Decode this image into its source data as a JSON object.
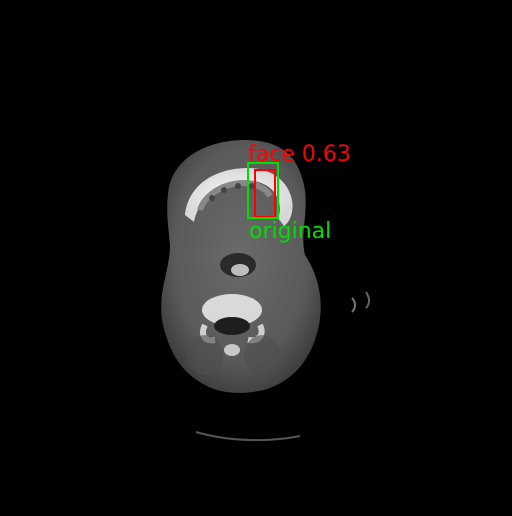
{
  "detections": {
    "predicted": {
      "class_label": "face",
      "score": "0.63",
      "color": "#ff0000"
    },
    "ground_truth": {
      "label": "original",
      "color": "#00e000"
    }
  },
  "image": {
    "background_color": "#000000",
    "scan_type": "ct-axial-head-slice"
  }
}
